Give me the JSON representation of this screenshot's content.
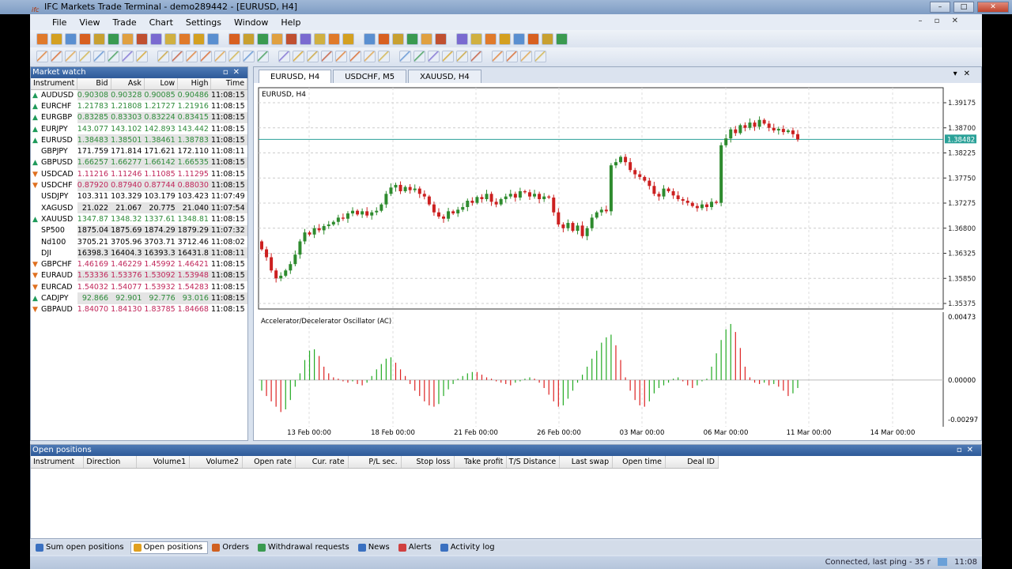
{
  "window": {
    "title": "IFC Markets Trade Terminal - demo289442 - [EURUSD, H4]",
    "logo": "ifc"
  },
  "menu": [
    "File",
    "View",
    "Trade",
    "Chart",
    "Settings",
    "Window",
    "Help"
  ],
  "market_watch": {
    "title": "Market watch",
    "columns": [
      "Instrument",
      "Bid",
      "Ask",
      "Low",
      "High",
      "Time"
    ],
    "rows": [
      {
        "instrument": "AUDUSD",
        "bid": "0.90308",
        "ask": "0.90328",
        "low": "0.90085",
        "high": "0.90486",
        "time": "11:08:15",
        "trend": "up"
      },
      {
        "instrument": "EURCHF",
        "bid": "1.21783",
        "ask": "1.21808",
        "low": "1.21727",
        "high": "1.21916",
        "time": "11:08:15",
        "trend": "up"
      },
      {
        "instrument": "EURGBP",
        "bid": "0.83285",
        "ask": "0.83303",
        "low": "0.83224",
        "high": "0.83415",
        "time": "11:08:15",
        "trend": "up"
      },
      {
        "instrument": "EURJPY",
        "bid": "143.077",
        "ask": "143.102",
        "low": "142.893",
        "high": "143.442",
        "time": "11:08:15",
        "trend": "up"
      },
      {
        "instrument": "EURUSD",
        "bid": "1.38483",
        "ask": "1.38501",
        "low": "1.38461",
        "high": "1.38783",
        "time": "11:08:15",
        "trend": "up"
      },
      {
        "instrument": "GBPJPY",
        "bid": "171.759",
        "ask": "171.814",
        "low": "171.621",
        "high": "172.110",
        "time": "11:08:11",
        "trend": "none"
      },
      {
        "instrument": "GBPUSD",
        "bid": "1.66257",
        "ask": "1.66277",
        "low": "1.66142",
        "high": "1.66535",
        "time": "11:08:15",
        "trend": "up"
      },
      {
        "instrument": "USDCAD",
        "bid": "1.11216",
        "ask": "1.11246",
        "low": "1.11085",
        "high": "1.11295",
        "time": "11:08:15",
        "trend": "down"
      },
      {
        "instrument": "USDCHF",
        "bid": "0.87920",
        "ask": "0.87940",
        "low": "0.87744",
        "high": "0.88030",
        "time": "11:08:15",
        "trend": "down"
      },
      {
        "instrument": "USDJPY",
        "bid": "103.311",
        "ask": "103.329",
        "low": "103.179",
        "high": "103.423",
        "time": "11:07:49",
        "trend": "none"
      },
      {
        "instrument": "XAGUSD",
        "bid": "21.022",
        "ask": "21.067",
        "low": "20.775",
        "high": "21.040",
        "time": "11:07:54",
        "trend": "none"
      },
      {
        "instrument": "XAUUSD",
        "bid": "1347.87",
        "ask": "1348.32",
        "low": "1337.61",
        "high": "1348.81",
        "time": "11:08:15",
        "trend": "up"
      },
      {
        "instrument": "SP500",
        "bid": "1875.04",
        "ask": "1875.69",
        "low": "1874.29",
        "high": "1879.29",
        "time": "11:07:32",
        "trend": "none"
      },
      {
        "instrument": "Nd100",
        "bid": "3705.21",
        "ask": "3705.96",
        "low": "3703.71",
        "high": "3712.46",
        "time": "11:08:02",
        "trend": "none"
      },
      {
        "instrument": "DJI",
        "bid": "16398.3",
        "ask": "16404.3",
        "low": "16393.3",
        "high": "16431.8",
        "time": "11:08:11",
        "trend": "none"
      },
      {
        "instrument": "GBPCHF",
        "bid": "1.46169",
        "ask": "1.46229",
        "low": "1.45992",
        "high": "1.46421",
        "time": "11:08:15",
        "trend": "down"
      },
      {
        "instrument": "EURAUD",
        "bid": "1.53336",
        "ask": "1.53376",
        "low": "1.53092",
        "high": "1.53948",
        "time": "11:08:15",
        "trend": "down"
      },
      {
        "instrument": "EURCAD",
        "bid": "1.54032",
        "ask": "1.54077",
        "low": "1.53932",
        "high": "1.54283",
        "time": "11:08:15",
        "trend": "down"
      },
      {
        "instrument": "CADJPY",
        "bid": "92.866",
        "ask": "92.901",
        "low": "92.776",
        "high": "93.016",
        "time": "11:08:15",
        "trend": "up"
      },
      {
        "instrument": "GBPAUD",
        "bid": "1.84070",
        "ask": "1.84130",
        "low": "1.83785",
        "high": "1.84668",
        "time": "11:08:15",
        "trend": "down"
      }
    ]
  },
  "chart_tabs": [
    {
      "label": "EURUSD, H4",
      "active": true
    },
    {
      "label": "USDCHF, M5",
      "active": false
    },
    {
      "label": "XAUUSD, H4",
      "active": false
    }
  ],
  "colors": {
    "bull": "#2e8b2e",
    "bear": "#cc2020",
    "current_price": "#2aa198",
    "ac_up": "#22aa22",
    "ac_down": "#dd2222"
  },
  "chart_data": {
    "type": "candlestick",
    "title": "EURUSD, H4",
    "current_price": "1.38482",
    "price_ticks": [
      "1.39175",
      "1.38700",
      "1.38225",
      "1.37750",
      "1.37275",
      "1.36800",
      "1.36325",
      "1.35850",
      "1.35375"
    ],
    "ylim": [
      1.35375,
      1.39175
    ],
    "first_open": 1.3655,
    "closes": [
      1.364,
      1.3625,
      1.36,
      1.3585,
      1.359,
      1.36,
      1.3612,
      1.363,
      1.3655,
      1.3672,
      1.3668,
      1.368,
      1.3676,
      1.3684,
      1.3687,
      1.3692,
      1.37,
      1.3698,
      1.3708,
      1.3713,
      1.3706,
      1.3712,
      1.3704,
      1.371,
      1.3713,
      1.3725,
      1.3745,
      1.3757,
      1.3762,
      1.375,
      1.3758,
      1.3752,
      1.3755,
      1.3745,
      1.374,
      1.3725,
      1.371,
      1.3702,
      1.3698,
      1.3712,
      1.3708,
      1.3715,
      1.372,
      1.3732,
      1.3728,
      1.3739,
      1.3735,
      1.3745,
      1.373,
      1.3725,
      1.3735,
      1.374,
      1.3745,
      1.3738,
      1.375,
      1.3748,
      1.374,
      1.3745,
      1.3735,
      1.374,
      1.3738,
      1.371,
      1.3687,
      1.368,
      1.369,
      1.3675,
      1.3685,
      1.3665,
      1.368,
      1.37,
      1.371,
      1.3715,
      1.3712,
      1.3799,
      1.3805,
      1.3815,
      1.3805,
      1.379,
      1.3782,
      1.3777,
      1.377,
      1.376,
      1.3745,
      1.374,
      1.3755,
      1.375,
      1.3742,
      1.3735,
      1.3732,
      1.3728,
      1.3722,
      1.3718,
      1.3725,
      1.372,
      1.373,
      1.3728,
      1.3837,
      1.385,
      1.3867,
      1.386,
      1.3875,
      1.387,
      1.388,
      1.3872,
      1.3885,
      1.3878,
      1.387,
      1.3865,
      1.3868,
      1.3862,
      1.3865,
      1.3858,
      1.3848
    ],
    "x_ticks": [
      "13 Feb 00:00",
      "18 Feb 00:00",
      "21 Feb 00:00",
      "26 Feb 00:00",
      "03 Mar 00:00",
      "06 Mar 00:00",
      "11 Mar 00:00",
      "14 Mar 00:00"
    ],
    "indicator": {
      "title": "Accelerator/Decelerator Oscillator (AC)",
      "ticks": [
        "0.00473",
        "0.00000",
        "-0.00297"
      ],
      "ylim": [
        -0.00297,
        0.00473
      ],
      "values": [
        -0.0008,
        -0.0012,
        -0.0016,
        -0.002,
        -0.0024,
        -0.0022,
        -0.0015,
        -0.0005,
        0.0005,
        0.0015,
        0.0022,
        0.0023,
        0.0018,
        0.001,
        0.0005,
        0.0002,
        0.0001,
        -0.0001,
        -0.0002,
        -0.0001,
        -0.0003,
        -0.0004,
        -0.0002,
        0.0003,
        0.0008,
        0.0012,
        0.0016,
        0.0017,
        0.0013,
        0.0008,
        0.0003,
        -0.0003,
        -0.0008,
        -0.0012,
        -0.0016,
        -0.0019,
        -0.002,
        -0.0018,
        -0.0012,
        -0.0007,
        -0.0003,
        0.0001,
        0.0003,
        0.0005,
        0.0006,
        0.0006,
        0.0004,
        0.0002,
        0.0001,
        -0.0001,
        -0.0002,
        -0.0003,
        -0.0004,
        -0.0002,
        -0.0001,
        0.0001,
        0.0002,
        0.0001,
        -0.0002,
        -0.0006,
        -0.0011,
        -0.0016,
        -0.002,
        -0.0019,
        -0.0014,
        -0.0008,
        -0.0002,
        0.0004,
        0.001,
        0.0016,
        0.0022,
        0.0028,
        0.0032,
        0.0034,
        0.0026,
        0.0015,
        0.0002,
        -0.0008,
        -0.0015,
        -0.0019,
        -0.002,
        -0.0016,
        -0.001,
        -0.0006,
        -0.0004,
        -0.0002,
        0.0001,
        0.0002,
        -0.0001,
        -0.0004,
        -0.0006,
        -0.0004,
        -0.0001,
        0.0001,
        0.001,
        0.002,
        0.003,
        0.0038,
        0.0042,
        0.0036,
        0.0024,
        0.001,
        0.0002,
        -0.0002,
        -0.0003,
        -0.0002,
        -0.0004,
        -0.0003,
        -0.0005,
        -0.0008,
        -0.0012,
        -0.001,
        -0.0006
      ]
    }
  },
  "open_positions": {
    "title": "Open positions",
    "columns": [
      "Instrument",
      "Direction",
      "Volume1",
      "Volume2",
      "Open rate",
      "Cur. rate",
      "P/L sec.",
      "Stop loss",
      "Take profit",
      "T/S Distance",
      "Last swap",
      "Open time",
      "Deal ID"
    ]
  },
  "bottom_tabs": [
    {
      "label": "Sum open positions",
      "active": false
    },
    {
      "label": "Open positions",
      "active": true
    },
    {
      "label": "Orders",
      "active": false
    },
    {
      "label": "Withdrawal requests",
      "active": false
    },
    {
      "label": "News",
      "active": false
    },
    {
      "label": "Alerts",
      "active": false
    },
    {
      "label": "Activity log",
      "active": false
    }
  ],
  "status": {
    "text": "Connected, last ping - 35 r",
    "time": "11:08"
  }
}
